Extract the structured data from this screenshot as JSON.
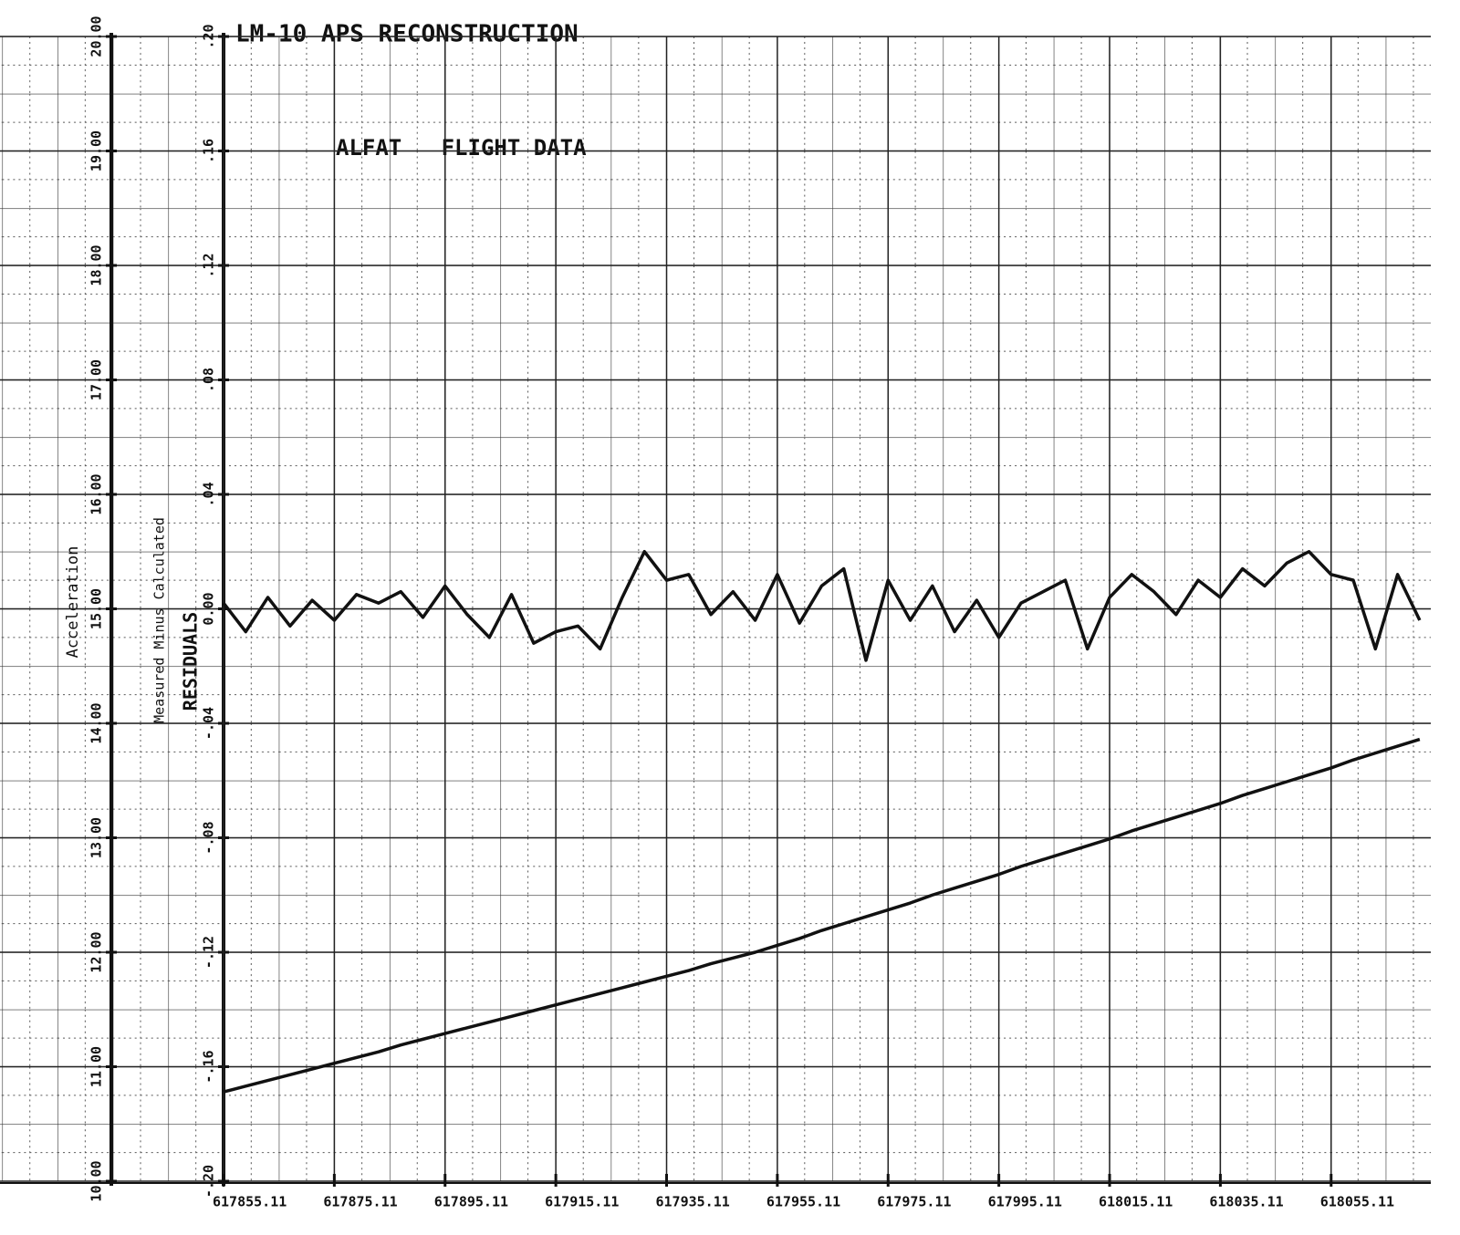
{
  "chart_data": {
    "type": "line",
    "title": "LM-10 APS RECONSTRUCTION",
    "subtitle": "ALFAT   FLIGHT DATA",
    "y_label": "Acceleration",
    "y2_label": "Measured Minus Calculated",
    "y2_sublabel": "RESIDUALS",
    "x": [
      617855.11,
      617859.11,
      617863.11,
      617867.11,
      617871.11,
      617875.11,
      617879.11,
      617883.11,
      617887.11,
      617891.11,
      617895.11,
      617899.11,
      617903.11,
      617907.11,
      617911.11,
      617915.11,
      617919.11,
      617923.11,
      617927.11,
      617931.11,
      617935.11,
      617939.11,
      617943.11,
      617947.11,
      617951.11,
      617955.11,
      617959.11,
      617963.11,
      617967.11,
      617971.11,
      617975.11,
      617979.11,
      617983.11,
      617987.11,
      617991.11,
      617995.11,
      617999.11,
      618003.11,
      618007.11,
      618011.11,
      618015.11,
      618019.11,
      618023.11,
      618027.11,
      618031.11,
      618035.11,
      618039.11,
      618043.11,
      618047.11,
      618051.11,
      618055.11,
      618059.11,
      618063.11,
      618067.11,
      618071.11
    ],
    "series": [
      {
        "name": "Acceleration",
        "color": "#111111",
        "axis": "y",
        "values": [
          10.78,
          10.83,
          10.88,
          10.93,
          10.98,
          11.03,
          11.08,
          11.13,
          11.19,
          11.24,
          11.29,
          11.34,
          11.39,
          11.44,
          11.49,
          11.54,
          11.59,
          11.64,
          11.69,
          11.74,
          11.79,
          11.84,
          11.9,
          11.95,
          12.0,
          12.06,
          12.12,
          12.19,
          12.25,
          12.31,
          12.37,
          12.43,
          12.5,
          12.56,
          12.62,
          12.68,
          12.75,
          12.81,
          12.87,
          12.93,
          12.99,
          13.06,
          13.12,
          13.18,
          13.24,
          13.3,
          13.37,
          13.43,
          13.49,
          13.55,
          13.61,
          13.68,
          13.74,
          13.8,
          13.86
        ]
      },
      {
        "name": "Residuals",
        "color": "#111111",
        "axis": "y2",
        "values": [
          0.002,
          -0.008,
          0.004,
          -0.006,
          0.003,
          -0.004,
          0.005,
          0.002,
          0.006,
          -0.003,
          0.008,
          -0.002,
          -0.01,
          0.005,
          -0.012,
          -0.008,
          -0.006,
          -0.014,
          0.004,
          0.02,
          0.01,
          0.012,
          -0.002,
          0.006,
          -0.004,
          0.012,
          -0.005,
          0.008,
          0.014,
          -0.018,
          0.01,
          -0.004,
          0.008,
          -0.008,
          0.003,
          -0.01,
          0.002,
          0.006,
          0.01,
          -0.014,
          0.004,
          0.012,
          0.006,
          -0.002,
          0.01,
          0.004,
          0.014,
          0.008,
          0.016,
          0.02,
          0.012,
          0.01,
          -0.014,
          0.012,
          -0.004
        ]
      }
    ],
    "xlim": [
      617855.11,
      618073.11
    ],
    "xticks": [
      617855.11,
      617875.11,
      617895.11,
      617915.11,
      617935.11,
      617955.11,
      617975.11,
      617995.11,
      618015.11,
      618035.11,
      618055.11
    ],
    "ylim": [
      10,
      20
    ],
    "yticks": [
      {
        "value": 20,
        "label": "20.00"
      },
      {
        "value": 19,
        "label": "19.00"
      },
      {
        "value": 18,
        "label": "18.00"
      },
      {
        "value": 17,
        "label": "17.00"
      },
      {
        "value": 16,
        "label": "16.00"
      },
      {
        "value": 15,
        "label": "15.00"
      },
      {
        "value": 14,
        "label": "14.00"
      },
      {
        "value": 13,
        "label": "13.00"
      },
      {
        "value": 12,
        "label": "12.00"
      },
      {
        "value": 11,
        "label": "11.00"
      },
      {
        "value": 10,
        "label": "10.00"
      }
    ],
    "y2lim": [
      -0.2,
      0.2
    ],
    "y2ticks": [
      {
        "value": 0.2,
        "label": ".20"
      },
      {
        "value": 0.16,
        "label": ".16"
      },
      {
        "value": 0.12,
        "label": ".12"
      },
      {
        "value": 0.08,
        "label": ".08"
      },
      {
        "value": 0.04,
        "label": ".04"
      },
      {
        "value": 0,
        "label": "0.00"
      },
      {
        "value": -0.04,
        "label": "-.04"
      },
      {
        "value": -0.08,
        "label": "-.08"
      },
      {
        "value": -0.12,
        "label": "-.12"
      },
      {
        "value": -0.16,
        "label": "-.16"
      },
      {
        "value": -0.2,
        "label": "-.20"
      }
    ],
    "grid": true
  }
}
